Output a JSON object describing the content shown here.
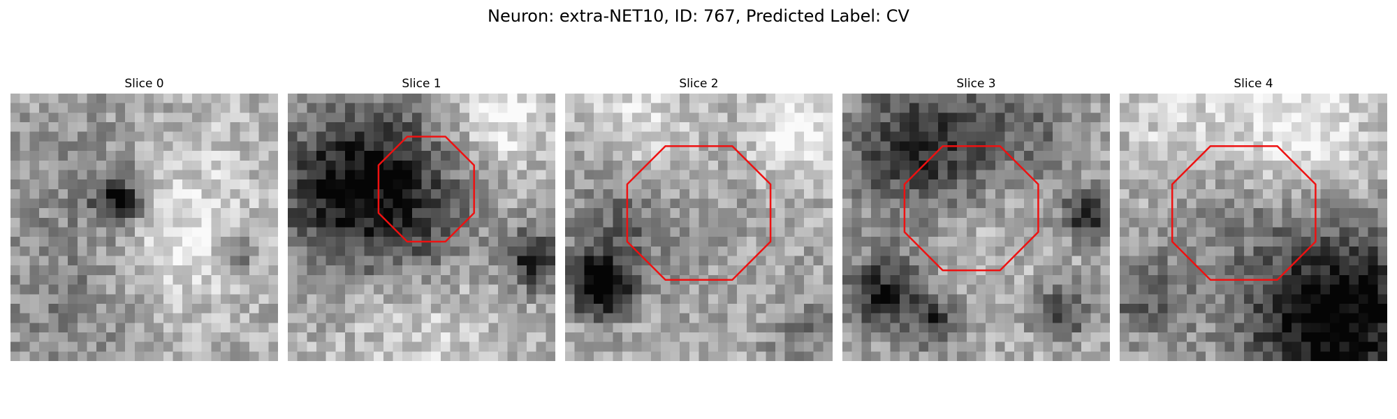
{
  "figure": {
    "title": "Neuron: extra-NET10, ID: 767, Predicted Label: CV",
    "contour_color": "#ee1111"
  },
  "slices": [
    {
      "title": "Slice 0",
      "has_contour": false
    },
    {
      "title": "Slice 1",
      "has_contour": true
    },
    {
      "title": "Slice 2",
      "has_contour": true
    },
    {
      "title": "Slice 3",
      "has_contour": true
    },
    {
      "title": "Slice 4",
      "has_contour": true
    }
  ]
}
